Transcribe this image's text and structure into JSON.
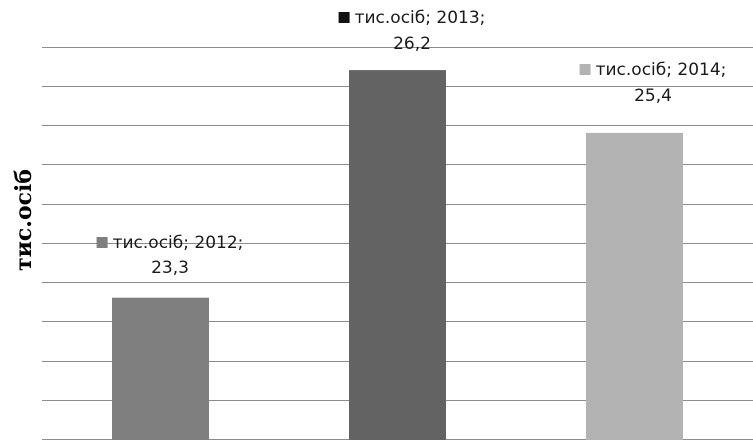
{
  "chart_data": {
    "type": "bar",
    "categories": [
      "2012",
      "2013",
      "2014"
    ],
    "series": [
      {
        "name": "тис.осіб",
        "values": [
          23.3,
          26.2,
          25.4
        ]
      }
    ],
    "bar_colors": [
      "#7f7f7f",
      "#636363",
      "#b3b3b3"
    ],
    "data_labels": [
      {
        "line1": "тис.осіб; 2012;",
        "line2": "23,3"
      },
      {
        "line1": "тис.осіб; 2013;",
        "line2": "26,2"
      },
      {
        "line1": "тис.осіб; 2014;",
        "line2": "25,4"
      }
    ],
    "ylabel": "тис.осіб",
    "ylim": [
      21.5,
      26.8
    ],
    "grid": true,
    "gridline_color": "#8c8c8c",
    "legend": "none"
  }
}
